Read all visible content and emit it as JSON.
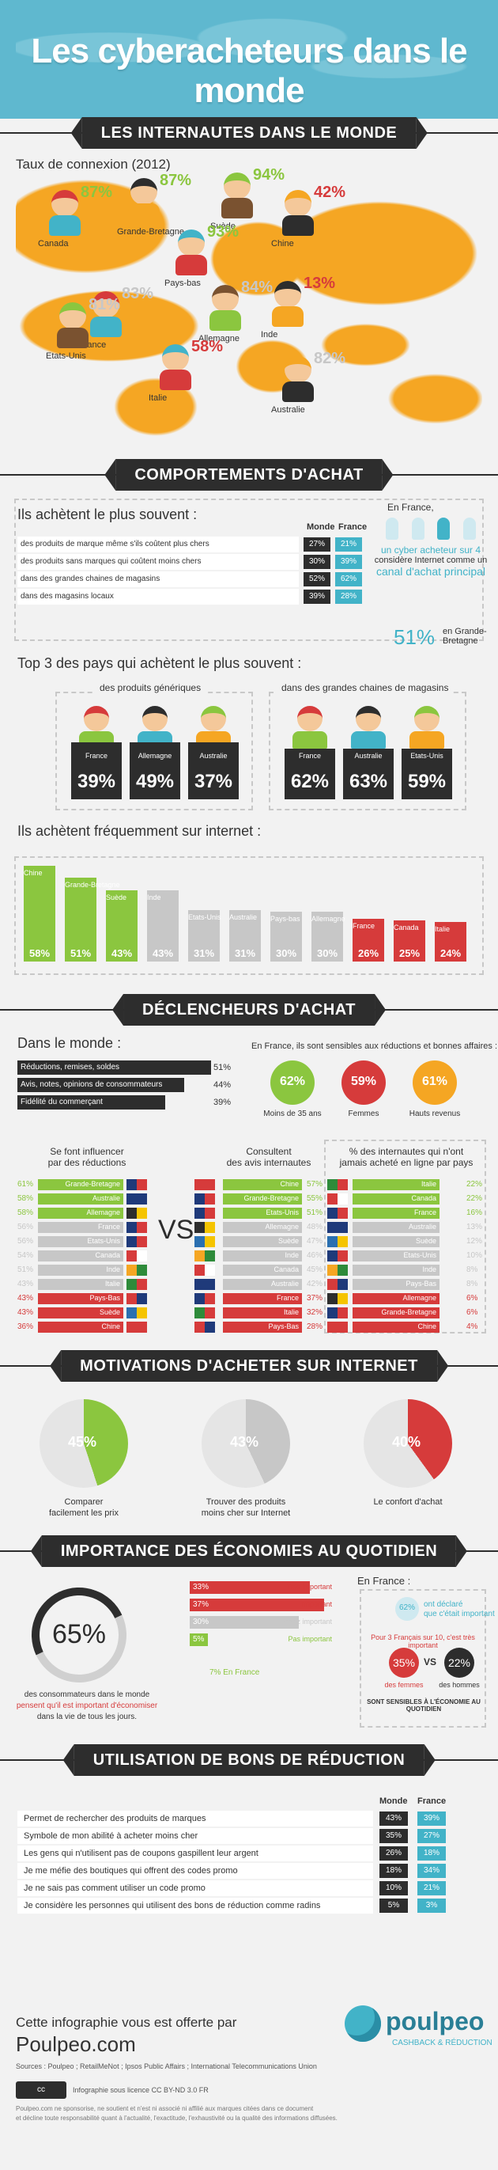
{
  "title": "Les cyberacheteurs dans le monde",
  "colors": {
    "green": "#8bc63f",
    "grey": "#c7c7c7",
    "red": "#d63b3b",
    "blue": "#42b3c8",
    "dark": "#2d2d2d",
    "orange": "#f5a623"
  },
  "sec1": {
    "banner": "LES INTERNAUTES DANS LE MONDE",
    "subtitle": "Taux de connexion (2012)",
    "countries": [
      {
        "name": "Canada",
        "pct": "87%"
      },
      {
        "name": "Grande-Bretagne",
        "pct": "87%"
      },
      {
        "name": "Suède",
        "pct": "94%"
      },
      {
        "name": "Pays-bas",
        "pct": "93%"
      },
      {
        "name": "Chine",
        "pct": "42%"
      },
      {
        "name": "Allemagne",
        "pct": "84%"
      },
      {
        "name": "France",
        "pct": "83%"
      },
      {
        "name": "Inde",
        "pct": "13%"
      },
      {
        "name": "Etats-Unis",
        "pct": "81%"
      },
      {
        "name": "Italie",
        "pct": "58%"
      },
      {
        "name": "Australie",
        "pct": "82%"
      }
    ]
  },
  "sec2": {
    "banner": "COMPORTEMENTS D'ACHAT",
    "plus_souvent": {
      "title": "Ils achètent le plus souvent :",
      "col_monde": "Monde",
      "col_france": "France",
      "rows": [
        {
          "label": "des produits de marque même s'ils coûtent plus chers",
          "monde": "27%",
          "france": "21%"
        },
        {
          "label": "des produits sans marques qui coûtent moins chers",
          "monde": "30%",
          "france": "39%"
        },
        {
          "label": "dans des grandes chaines de magasins",
          "monde": "52%",
          "france": "62%"
        },
        {
          "label": "dans des magasins locaux",
          "monde": "39%",
          "france": "28%"
        }
      ]
    },
    "france_note": {
      "intro": "En France,",
      "line1": "un cyber acheteur sur 4",
      "line2": "considère Internet comme un",
      "line3": "canal d'achat principal",
      "big": "51%",
      "big_label": "en Grande-Bretagne"
    },
    "top3": {
      "title": "Top 3 des pays qui achètent le plus souvent :",
      "generiques": {
        "label": "des produits génériques",
        "items": [
          {
            "name": "France",
            "pct": "39%"
          },
          {
            "name": "Allemagne",
            "pct": "49%"
          },
          {
            "name": "Australie",
            "pct": "37%"
          }
        ]
      },
      "chaines": {
        "label": "dans des grandes chaines de magasins",
        "items": [
          {
            "name": "France",
            "pct": "62%"
          },
          {
            "name": "Australie",
            "pct": "63%"
          },
          {
            "name": "Etats-Unis",
            "pct": "59%"
          }
        ]
      }
    },
    "internet": {
      "title": "Ils achètent fréquemment sur internet :"
    }
  },
  "chart_data": {
    "type": "bar",
    "categories": [
      "Chine",
      "Grande-Bretagne",
      "Suède",
      "Inde",
      "Etats-Unis",
      "Australie",
      "Pays-bas",
      "Allemagne",
      "France",
      "Canada",
      "Italie"
    ],
    "values": [
      58,
      51,
      43,
      43,
      31,
      31,
      30,
      30,
      26,
      25,
      24
    ],
    "labels": [
      "58%",
      "51%",
      "43%",
      "43%",
      "31%",
      "31%",
      "30%",
      "30%",
      "26%",
      "25%",
      "24%"
    ],
    "groups": [
      "green",
      "green",
      "green",
      "grey",
      "grey",
      "grey",
      "grey",
      "grey",
      "red",
      "red",
      "red"
    ],
    "ylim": [
      0,
      60
    ]
  },
  "sec3": {
    "banner": "DÉCLENCHEURS D'ACHAT",
    "monde": {
      "title": "Dans le monde :",
      "rows": [
        {
          "label": "Réductions, remises, soldes",
          "pct": "51%",
          "v": 51
        },
        {
          "label": "Avis, notes, opinions de consommateurs",
          "pct": "44%",
          "v": 44
        },
        {
          "label": "Fidélité du commerçant",
          "pct": "39%",
          "v": 39
        }
      ]
    },
    "france": {
      "title": "En France, ils sont sensibles aux réductions et bonnes affaires :",
      "items": [
        {
          "pct": "62%",
          "label": "Moins de 35 ans"
        },
        {
          "pct": "59%",
          "label": "Femmes"
        },
        {
          "pct": "61%",
          "label": "Hauts revenus"
        }
      ]
    },
    "col1": {
      "title1": "Se font influencer",
      "title2": "par des réductions",
      "rows": [
        {
          "pct": "61%",
          "name": "Grande-Bretagne"
        },
        {
          "pct": "58%",
          "name": "Australie"
        },
        {
          "pct": "58%",
          "name": "Allemagne"
        },
        {
          "pct": "56%",
          "name": "France"
        },
        {
          "pct": "56%",
          "name": "Etats-Unis"
        },
        {
          "pct": "54%",
          "name": "Canada"
        },
        {
          "pct": "51%",
          "name": "Inde"
        },
        {
          "pct": "43%",
          "name": "Italie"
        },
        {
          "pct": "43%",
          "name": "Pays-Bas"
        },
        {
          "pct": "43%",
          "name": "Suède"
        },
        {
          "pct": "36%",
          "name": "Chine"
        }
      ]
    },
    "vs": "VS",
    "col2": {
      "title1": "Consultent",
      "title2": "des avis internautes",
      "rows": [
        {
          "pct": "57%",
          "name": "Chine"
        },
        {
          "pct": "55%",
          "name": "Grande-Bretagne"
        },
        {
          "pct": "51%",
          "name": "Etats-Unis"
        },
        {
          "pct": "48%",
          "name": "Allemagne"
        },
        {
          "pct": "47%",
          "name": "Suède"
        },
        {
          "pct": "46%",
          "name": "Inde"
        },
        {
          "pct": "45%",
          "name": "Canada"
        },
        {
          "pct": "42%",
          "name": "Australie"
        },
        {
          "pct": "37%",
          "name": "France"
        },
        {
          "pct": "32%",
          "name": "Italie"
        },
        {
          "pct": "28%",
          "name": "Pays-Bas"
        }
      ]
    },
    "col3": {
      "title1": "% des internautes qui n'ont",
      "title2": "jamais acheté en ligne par pays",
      "rows": [
        {
          "pct": "22%",
          "name": "Italie"
        },
        {
          "pct": "22%",
          "name": "Canada"
        },
        {
          "pct": "16%",
          "name": "France"
        },
        {
          "pct": "13%",
          "name": "Australie"
        },
        {
          "pct": "12%",
          "name": "Suède"
        },
        {
          "pct": "10%",
          "name": "Etats-Unis"
        },
        {
          "pct": "8%",
          "name": "Inde"
        },
        {
          "pct": "8%",
          "name": "Pays-Bas"
        },
        {
          "pct": "6%",
          "name": "Allemagne"
        },
        {
          "pct": "6%",
          "name": "Grande-Bretagne"
        },
        {
          "pct": "4%",
          "name": "Chine"
        }
      ]
    }
  },
  "sec4": {
    "banner": "MOTIVATIONS D'ACHETER SUR INTERNET",
    "items": [
      {
        "pct": "45%",
        "v": 45,
        "l1": "Comparer",
        "l2": "facilement les prix",
        "color": "#8bc63f"
      },
      {
        "pct": "43%",
        "v": 43,
        "l1": "Trouver des produits",
        "l2": "moins cher sur Internet",
        "color": "#c7c7c7"
      },
      {
        "pct": "40%",
        "v": 40,
        "l1": "Le confort d'achat",
        "l2": "",
        "color": "#d63b3b"
      }
    ]
  },
  "sec5": {
    "banner": "IMPORTANCE DES ÉCONOMIES AU QUOTIDIEN",
    "big": "65%",
    "desc1": "des consommateurs dans le monde",
    "desc2": "pensent qu'il est important d'économiser",
    "desc3": "dans la vie de tous les jours.",
    "bars": [
      {
        "pct": "33%",
        "label": "Très important",
        "color": "#d63b3b"
      },
      {
        "pct": "37%",
        "label": "Important",
        "color": "#d63b3b"
      },
      {
        "pct": "30%",
        "label": "Assez important",
        "color": "#c7c7c7"
      },
      {
        "pct": "5%",
        "label": "Pas important",
        "color": "#8bc63f"
      }
    ],
    "france_small": "7% En France",
    "france_title": "En France :",
    "fr_pct": "62%",
    "fr_l1": "ont déclaré",
    "fr_l2": "que c'était important",
    "fr_note": "Pour 3 Français sur 10, c'est très important",
    "hommes_pct": "35%",
    "hommes": "des femmes",
    "femmes_pct": "22%",
    "femmes": "des hommes",
    "vs": "VS",
    "footer_note": "SONT SENSIBLES À L'ÉCONOMIE AU QUOTIDIEN"
  },
  "sec6": {
    "banner": "UTILISATION DE BONS DE RÉDUCTION",
    "col_monde": "Monde",
    "col_france": "France",
    "rows": [
      {
        "label": "Permet de rechercher des produits de marques",
        "monde": "43%",
        "france": "39%"
      },
      {
        "label": "Symbole de mon abilité à acheter moins cher",
        "monde": "35%",
        "france": "27%"
      },
      {
        "label": "Les gens qui n'utilisent pas de coupons gaspillent leur argent",
        "monde": "26%",
        "france": "18%"
      },
      {
        "label": "Je me méfie des boutiques qui offrent des codes promo",
        "monde": "18%",
        "france": "34%"
      },
      {
        "label": "Je ne sais pas comment utiliser un code promo",
        "monde": "10%",
        "france": "21%"
      },
      {
        "label": "Je considère les personnes qui utilisent des bons de réduction comme radins",
        "monde": "5%",
        "france": "3%"
      }
    ]
  },
  "footer": {
    "offert": "Cette infographie vous est offerte par",
    "site": "Poulpeo.com",
    "sources": "Sources : Poulpeo ; RetailMeNot ; Ipsos Public Affairs ; International Telecommunications Union",
    "brand": "poulpeo",
    "tagline": "CASHBACK & RÉDUCTION",
    "license": "Infographie sous licence CC BY-ND 3.0 FR",
    "fine1": "Poulpeo.com ne sponsorise, ne soutient et n'est ni associé ni affilié aux marques citées dans ce document",
    "fine2": "et décline toute responsabilité quant à l'actualité, l'exactitude, l'exhaustivité ou la qualité des informations diffusées."
  }
}
